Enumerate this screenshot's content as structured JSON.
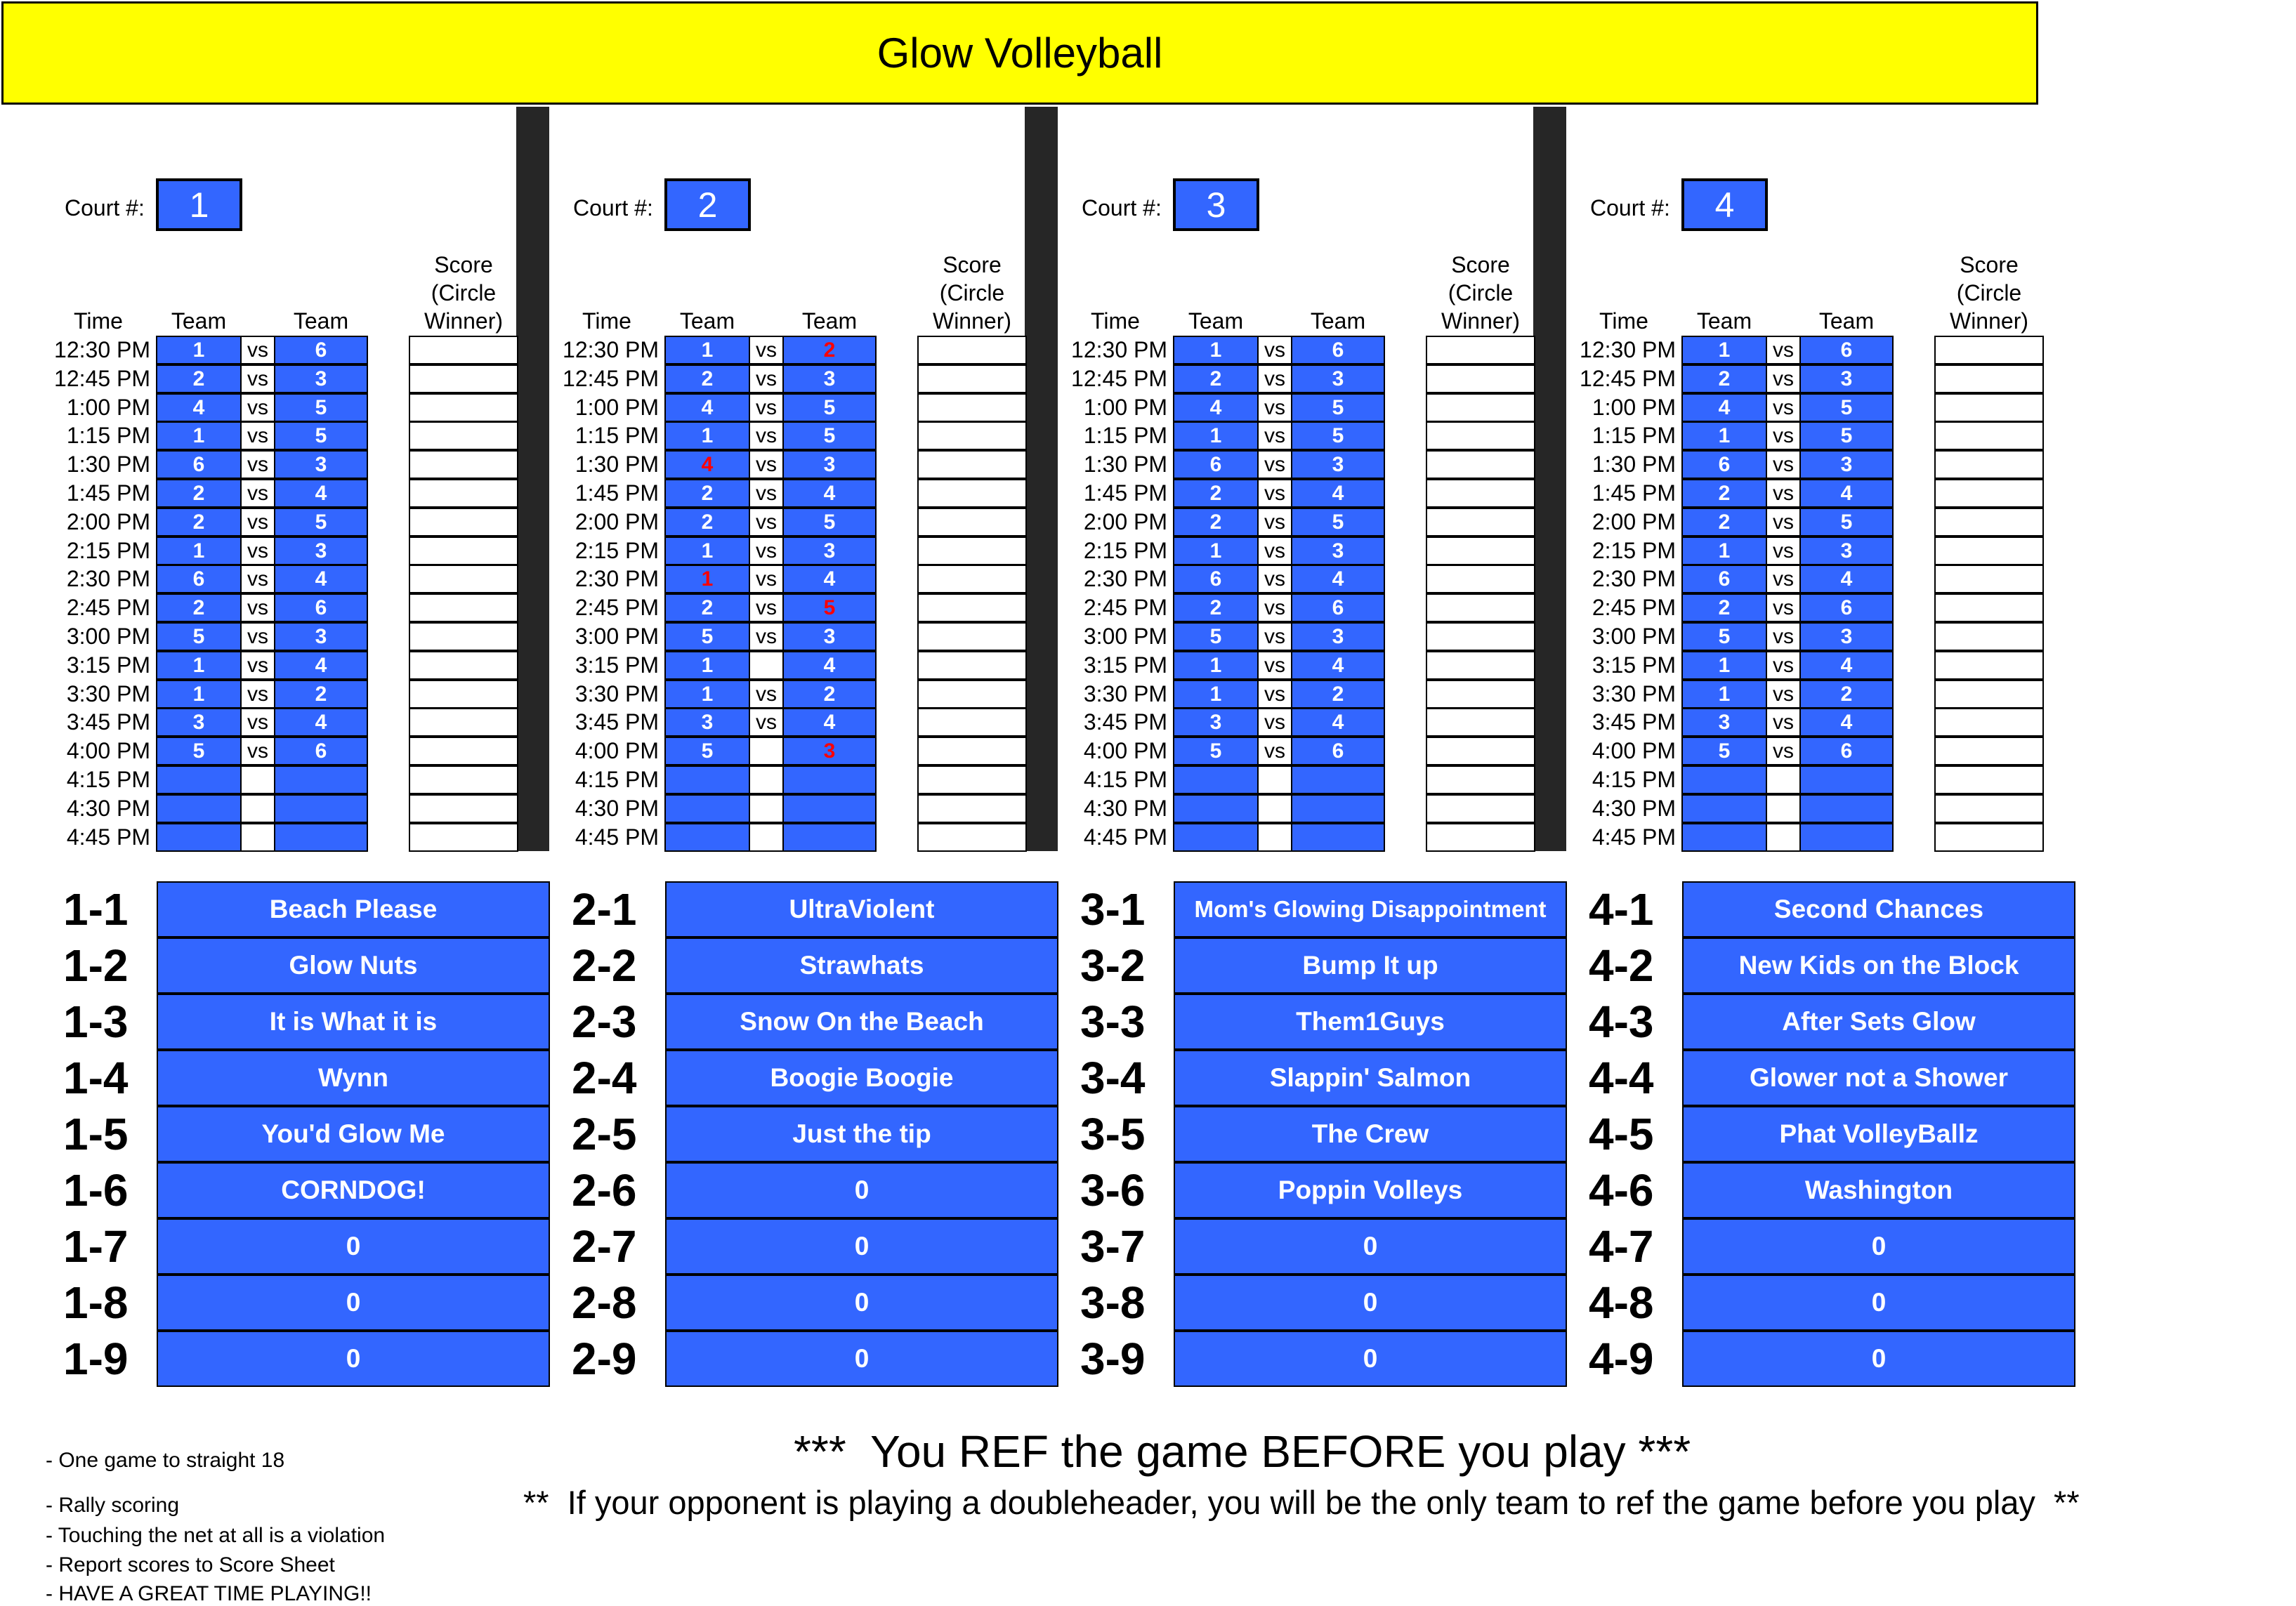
{
  "title": "Glow Volleyball",
  "labels": {
    "court": "Court #:",
    "time": "Time",
    "team": "Team",
    "vs": "vs",
    "score_line1": "Score",
    "score_line2": "(Circle",
    "score_line3": "Winner)"
  },
  "colors": {
    "title_bg": "#ffff00",
    "cell_bg": "#3366ff",
    "highlight_text": "#ff0000",
    "divider": "#262626"
  },
  "times": [
    "12:30 PM",
    "12:45 PM",
    "1:00 PM",
    "1:15 PM",
    "1:30 PM",
    "1:45 PM",
    "2:00 PM",
    "2:15 PM",
    "2:30 PM",
    "2:45 PM",
    "3:00 PM",
    "3:15 PM",
    "3:30 PM",
    "3:45 PM",
    "4:00 PM",
    "4:15 PM",
    "4:30 PM",
    "4:45 PM"
  ],
  "courts": [
    {
      "number": "1",
      "schedule": [
        [
          "1",
          "vs",
          "6"
        ],
        [
          "2",
          "vs",
          "3"
        ],
        [
          "4",
          "vs",
          "5"
        ],
        [
          "1",
          "vs",
          "5"
        ],
        [
          "6",
          "vs",
          "3"
        ],
        [
          "2",
          "vs",
          "4"
        ],
        [
          "2",
          "vs",
          "5"
        ],
        [
          "1",
          "vs",
          "3"
        ],
        [
          "6",
          "vs",
          "4"
        ],
        [
          "2",
          "vs",
          "6"
        ],
        [
          "5",
          "vs",
          "3"
        ],
        [
          "1",
          "vs",
          "4"
        ],
        [
          "1",
          "vs",
          "2"
        ],
        [
          "3",
          "vs",
          "4"
        ],
        [
          "5",
          "vs",
          "6"
        ],
        [
          "",
          "",
          ""
        ],
        [
          "",
          "",
          ""
        ],
        [
          "",
          "",
          ""
        ]
      ],
      "teams": [
        {
          "code": "1-1",
          "name": "Beach Please"
        },
        {
          "code": "1-2",
          "name": "Glow Nuts"
        },
        {
          "code": "1-3",
          "name": "It is What it is"
        },
        {
          "code": "1-4",
          "name": "Wynn"
        },
        {
          "code": "1-5",
          "name": "You'd Glow Me"
        },
        {
          "code": "1-6",
          "name": "CORNDOG!"
        },
        {
          "code": "1-7",
          "name": "0"
        },
        {
          "code": "1-8",
          "name": "0"
        },
        {
          "code": "1-9",
          "name": "0"
        }
      ]
    },
    {
      "number": "2",
      "schedule": [
        [
          "1",
          "vs",
          "2"
        ],
        [
          "2",
          "vs",
          "3"
        ],
        [
          "4",
          "vs",
          "5"
        ],
        [
          "1",
          "vs",
          "5"
        ],
        [
          "4",
          "vs",
          "3"
        ],
        [
          "2",
          "vs",
          "4"
        ],
        [
          "2",
          "vs",
          "5"
        ],
        [
          "1",
          "vs",
          "3"
        ],
        [
          "1",
          "vs",
          "4"
        ],
        [
          "2",
          "vs",
          "5"
        ],
        [
          "5",
          "vs",
          "3"
        ],
        [
          "1",
          "",
          "4"
        ],
        [
          "1",
          "vs",
          "2"
        ],
        [
          "3",
          "vs",
          "4"
        ],
        [
          "5",
          "",
          "3"
        ],
        [
          "",
          "",
          ""
        ],
        [
          "",
          "",
          ""
        ],
        [
          "",
          "",
          ""
        ]
      ],
      "teams": [
        {
          "code": "2-1",
          "name": "UltraViolent"
        },
        {
          "code": "2-2",
          "name": "Strawhats"
        },
        {
          "code": "2-3",
          "name": "Snow On the Beach"
        },
        {
          "code": "2-4",
          "name": "Boogie Boogie"
        },
        {
          "code": "2-5",
          "name": "Just the tip"
        },
        {
          "code": "2-6",
          "name": "0"
        },
        {
          "code": "2-7",
          "name": "0"
        },
        {
          "code": "2-8",
          "name": "0"
        },
        {
          "code": "2-9",
          "name": "0"
        }
      ]
    },
    {
      "number": "3",
      "schedule": [
        [
          "1",
          "vs",
          "6"
        ],
        [
          "2",
          "vs",
          "3"
        ],
        [
          "4",
          "vs",
          "5"
        ],
        [
          "1",
          "vs",
          "5"
        ],
        [
          "6",
          "vs",
          "3"
        ],
        [
          "2",
          "vs",
          "4"
        ],
        [
          "2",
          "vs",
          "5"
        ],
        [
          "1",
          "vs",
          "3"
        ],
        [
          "6",
          "vs",
          "4"
        ],
        [
          "2",
          "vs",
          "6"
        ],
        [
          "5",
          "vs",
          "3"
        ],
        [
          "1",
          "vs",
          "4"
        ],
        [
          "1",
          "vs",
          "2"
        ],
        [
          "3",
          "vs",
          "4"
        ],
        [
          "5",
          "vs",
          "6"
        ],
        [
          "",
          "",
          ""
        ],
        [
          "",
          "",
          ""
        ],
        [
          "",
          "",
          ""
        ]
      ],
      "teams": [
        {
          "code": "3-1",
          "name": "Mom's Glowing Disappointment"
        },
        {
          "code": "3-2",
          "name": "Bump It up"
        },
        {
          "code": "3-3",
          "name": "Them1Guys"
        },
        {
          "code": "3-4",
          "name": "Slappin' Salmon"
        },
        {
          "code": "3-5",
          "name": "The Crew"
        },
        {
          "code": "3-6",
          "name": "Poppin Volleys"
        },
        {
          "code": "3-7",
          "name": "0"
        },
        {
          "code": "3-8",
          "name": "0"
        },
        {
          "code": "3-9",
          "name": "0"
        }
      ]
    },
    {
      "number": "4",
      "schedule": [
        [
          "1",
          "vs",
          "6"
        ],
        [
          "2",
          "vs",
          "3"
        ],
        [
          "4",
          "vs",
          "5"
        ],
        [
          "1",
          "vs",
          "5"
        ],
        [
          "6",
          "vs",
          "3"
        ],
        [
          "2",
          "vs",
          "4"
        ],
        [
          "2",
          "vs",
          "5"
        ],
        [
          "1",
          "vs",
          "3"
        ],
        [
          "6",
          "vs",
          "4"
        ],
        [
          "2",
          "vs",
          "6"
        ],
        [
          "5",
          "vs",
          "3"
        ],
        [
          "1",
          "vs",
          "4"
        ],
        [
          "1",
          "vs",
          "2"
        ],
        [
          "3",
          "vs",
          "4"
        ],
        [
          "5",
          "vs",
          "6"
        ],
        [
          "",
          "",
          ""
        ],
        [
          "",
          "",
          ""
        ],
        [
          "",
          "",
          ""
        ]
      ],
      "teams": [
        {
          "code": "4-1",
          "name": "Second Chances"
        },
        {
          "code": "4-2",
          "name": "New Kids on the Block"
        },
        {
          "code": "4-3",
          "name": "After Sets Glow"
        },
        {
          "code": "4-4",
          "name": "Glower not a Shower"
        },
        {
          "code": "4-5",
          "name": "Phat VolleyBallz"
        },
        {
          "code": "4-6",
          "name": "Washington"
        },
        {
          "code": "4-7",
          "name": "0"
        },
        {
          "code": "4-8",
          "name": "0"
        },
        {
          "code": "4-9",
          "name": "0"
        }
      ]
    }
  ],
  "rules": [
    "- One game to straight 18",
    "- Rally scoring",
    "- Touching the net at all is a violation",
    "- Report scores to Score Sheet",
    "- HAVE A GREAT TIME PLAYING!!"
  ],
  "ref_main": "***  You REF the game BEFORE you play ***",
  "ref_sub": "**  If your opponent is playing a doubleheader, you will be the only team to ref the game before you play  **"
}
